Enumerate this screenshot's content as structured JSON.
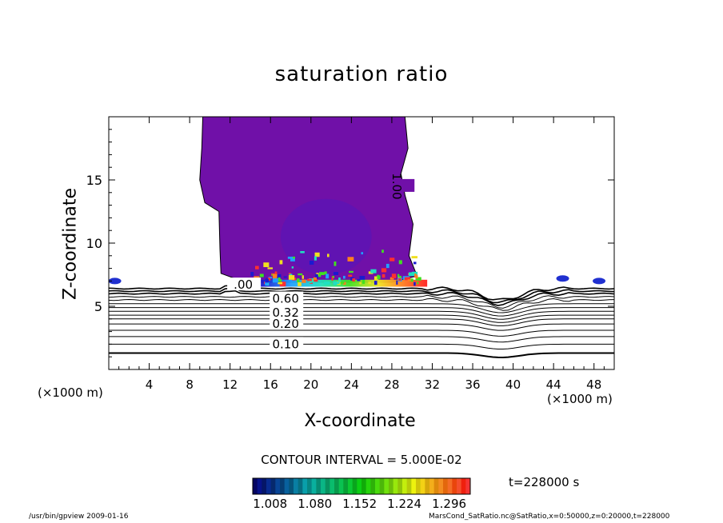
{
  "colors": {
    "plume": "#7010a8",
    "plume_core": "#5c14b4",
    "contour": "#000000",
    "colorbar_start": "#101060",
    "colorbar_end": "#ff3030"
  },
  "chart_data": {
    "type": "contour",
    "title": "saturation ratio",
    "xlabel": "X-coordinate",
    "ylabel": "Z-coordinate",
    "x_unit_label": "(×1000 m)",
    "z_unit_label": "(×1000 m)",
    "xlim": [
      0,
      50
    ],
    "ylim": [
      0,
      20
    ],
    "x_ticks": [
      4,
      8,
      12,
      16,
      20,
      24,
      28,
      32,
      36,
      40,
      44,
      48
    ],
    "y_ticks": [
      5,
      10,
      15
    ],
    "contour_interval_text": "CONTOUR INTERVAL = 5.000E-02",
    "time_text": "t=228000 s",
    "colorbar_ticks": [
      "1.008",
      "1.080",
      "1.152",
      "1.224",
      "1.296"
    ],
    "colorbar_range": [
      0.98,
      1.33
    ],
    "contour_labels": [
      {
        "text": "0.10",
        "x": 17.5,
        "z": 2.0
      },
      {
        "text": "0.20",
        "x": 17.5,
        "z": 3.6
      },
      {
        "text": "0.32",
        "x": 17.5,
        "z": 4.5
      },
      {
        "text": "0.60",
        "x": 17.5,
        "z": 5.6
      },
      {
        "text": ".00",
        "x": 13.3,
        "z": 6.7
      },
      {
        "text": "1.00",
        "x": 28.5,
        "z": 14.5
      }
    ],
    "contour_levels_z": [
      1.3,
      2.0,
      2.6,
      3.1,
      3.6,
      4.0,
      4.3,
      4.6,
      4.9,
      5.2,
      5.5,
      5.75,
      6.0,
      6.2,
      6.4
    ],
    "plume_extent": {
      "x_min": 9.0,
      "x_max": 30.5,
      "z_min": 6.9,
      "z_max": 20.0
    },
    "footer_left": "/usr/bin/gpview   2009-01-16",
    "footer_right": "MarsCond_SatRatio.nc@SatRatio,x=0:50000,z=0:20000,t=228000"
  }
}
